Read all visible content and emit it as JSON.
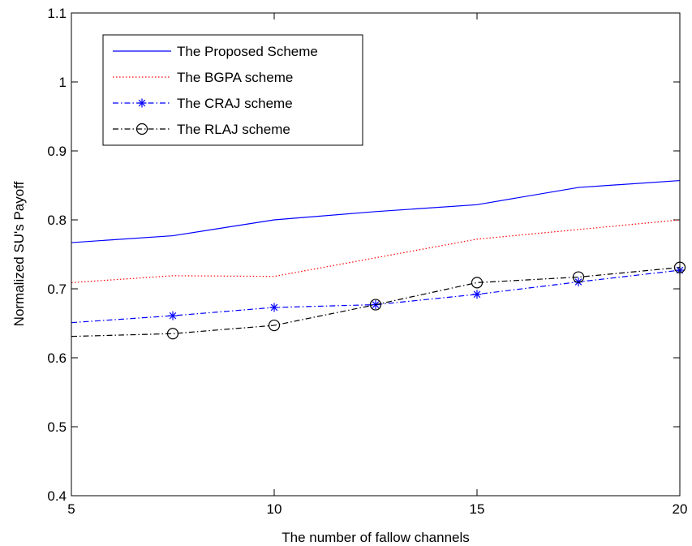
{
  "chart_data": {
    "type": "line",
    "title": "",
    "xlabel": "The number of fallow channels",
    "ylabel": "Normalized SU's Payoff",
    "xlim": [
      5,
      20
    ],
    "ylim": [
      0.4,
      1.1
    ],
    "xticks": [
      "5",
      "10",
      "15",
      "20"
    ],
    "yticks": [
      "0.4",
      "0.5",
      "0.6",
      "0.7",
      "0.8",
      "0.9",
      "1",
      "1.1"
    ],
    "legend_position": "top-left",
    "grid": false,
    "series": [
      {
        "name": "The Proposed Scheme",
        "color": "#0000ff",
        "line_style": "solid",
        "marker": "none",
        "x": [
          5,
          7.5,
          10,
          12.5,
          15,
          17.5,
          20
        ],
        "y": [
          0.767,
          0.777,
          0.8,
          0.812,
          0.822,
          0.847,
          0.857
        ]
      },
      {
        "name": "The BGPA scheme",
        "color": "#ff0000",
        "line_style": "dotted",
        "marker": "none",
        "x": [
          5,
          7.5,
          10,
          12.5,
          15,
          17.5,
          20
        ],
        "y": [
          0.709,
          0.719,
          0.718,
          0.745,
          0.772,
          0.786,
          0.8
        ]
      },
      {
        "name": "The CRAJ scheme",
        "color": "#0000ff",
        "line_style": "dashdot",
        "marker": "star",
        "x": [
          5,
          7.5,
          10,
          12.5,
          15,
          17.5,
          20
        ],
        "y": [
          0.651,
          0.661,
          0.673,
          0.677,
          0.692,
          0.71,
          0.727
        ]
      },
      {
        "name": "The RLAJ scheme",
        "color": "#000000",
        "line_style": "dashdot",
        "marker": "circle",
        "x": [
          5,
          7.5,
          10,
          12.5,
          15,
          17.5,
          20
        ],
        "y": [
          0.631,
          0.635,
          0.647,
          0.677,
          0.709,
          0.717,
          0.731
        ]
      }
    ]
  }
}
